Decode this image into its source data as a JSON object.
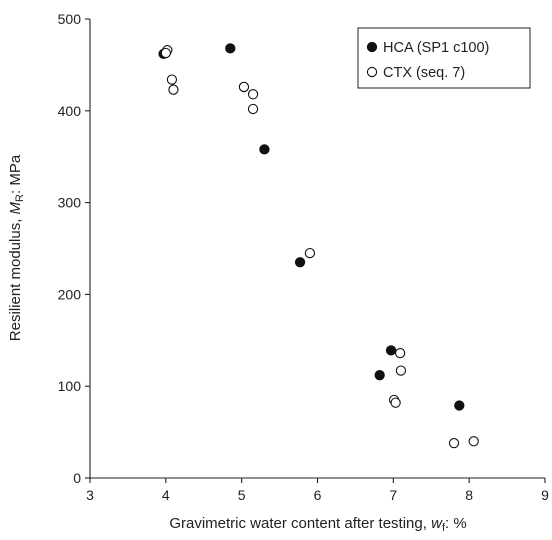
{
  "chart_data": {
    "type": "scatter",
    "xlabel": {
      "prefix": "Gravimetric water content after testing, ",
      "symbol": "w",
      "subscript": "f",
      "suffix": ": %"
    },
    "ylabel": {
      "prefix": "Resilient modulus, ",
      "symbol": "M",
      "subscript": "R",
      "suffix": ": MPa"
    },
    "xlim": [
      3,
      9
    ],
    "ylim": [
      0,
      500
    ],
    "x_ticks": [
      "3",
      "4",
      "5",
      "6",
      "7",
      "8",
      "9"
    ],
    "y_ticks": [
      "0",
      "100",
      "200",
      "300",
      "400",
      "500"
    ],
    "grid": false,
    "legend_position": "top-right",
    "series": [
      {
        "name": "HCA (SP1 c100)",
        "marker": "filled-circle",
        "color": "#111111",
        "points": [
          {
            "x": 3.97,
            "y": 462
          },
          {
            "x": 4.85,
            "y": 468
          },
          {
            "x": 5.3,
            "y": 358
          },
          {
            "x": 5.77,
            "y": 235
          },
          {
            "x": 6.97,
            "y": 139
          },
          {
            "x": 6.82,
            "y": 112
          },
          {
            "x": 7.87,
            "y": 79
          }
        ]
      },
      {
        "name": "CTX (seq. 7)",
        "marker": "open-circle",
        "color": "#111111",
        "points": [
          {
            "x": 4.02,
            "y": 466
          },
          {
            "x": 4.0,
            "y": 463
          },
          {
            "x": 4.08,
            "y": 434
          },
          {
            "x": 4.1,
            "y": 423
          },
          {
            "x": 5.03,
            "y": 426
          },
          {
            "x": 5.15,
            "y": 418
          },
          {
            "x": 5.15,
            "y": 402
          },
          {
            "x": 5.9,
            "y": 245
          },
          {
            "x": 7.09,
            "y": 136
          },
          {
            "x": 7.1,
            "y": 117
          },
          {
            "x": 7.01,
            "y": 85
          },
          {
            "x": 7.03,
            "y": 82
          },
          {
            "x": 7.8,
            "y": 38
          },
          {
            "x": 8.06,
            "y": 40
          }
        ]
      }
    ]
  }
}
